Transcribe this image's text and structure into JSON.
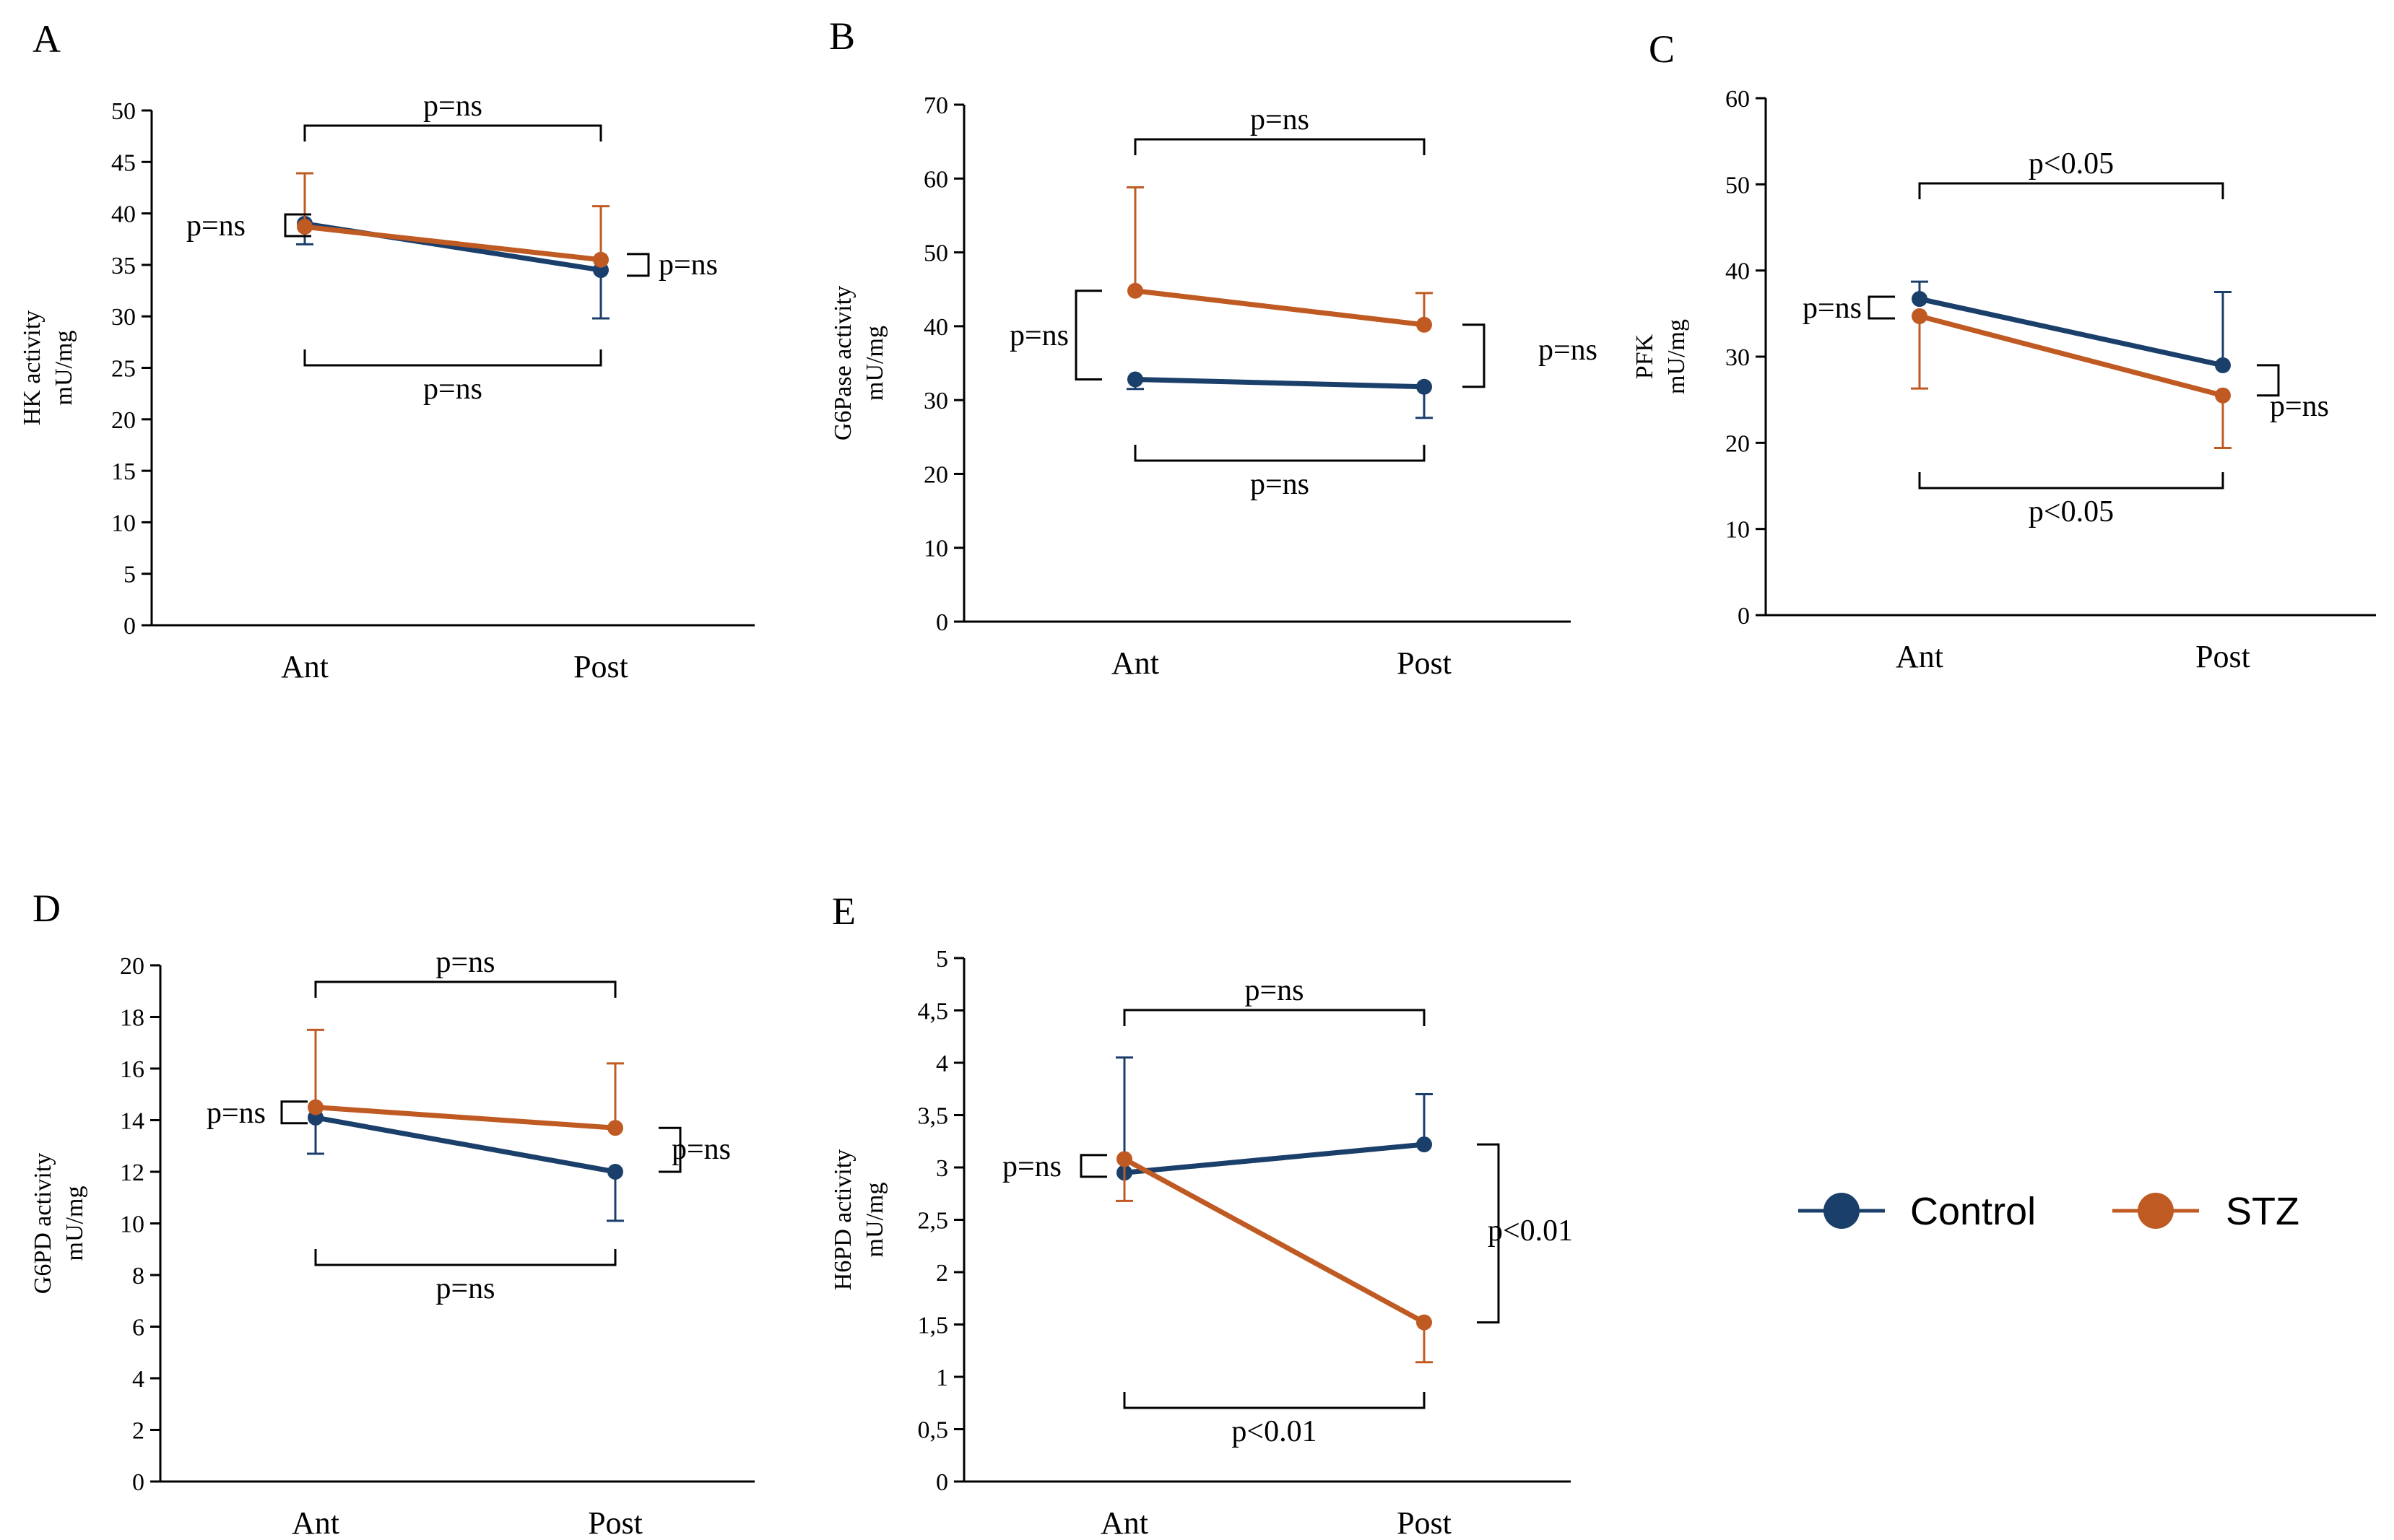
{
  "colors": {
    "control": "#1b3f6b",
    "stz": "#c05a23"
  },
  "legend": [
    {
      "key": "control",
      "label": "Control"
    },
    {
      "key": "stz",
      "label": "STZ"
    }
  ],
  "chart_data": [
    {
      "panel": "A",
      "type": "line",
      "categories": [
        "Ant",
        "Post"
      ],
      "ylabel_line1": "HK  activity",
      "ylabel_line2": "mU/mg",
      "ylim": [
        0,
        50
      ],
      "yticks": [
        "0",
        "5",
        "10",
        "15",
        "20",
        "25",
        "30",
        "35",
        "40",
        "45",
        "50"
      ],
      "series": [
        {
          "name": "Control",
          "key": "control",
          "values": [
            39,
            34.5
          ],
          "err_low": [
            2,
            4.7
          ],
          "err_high": [
            0,
            0
          ]
        },
        {
          "name": "STZ",
          "key": "stz",
          "values": [
            38.7,
            35.5
          ],
          "err_low": [
            0,
            0
          ],
          "err_high": [
            5.2,
            5.2
          ]
        }
      ],
      "annotations": {
        "top": "p=ns",
        "bottom": "p=ns",
        "left": "p=ns",
        "right": "p=ns"
      }
    },
    {
      "panel": "B",
      "type": "line",
      "categories": [
        "Ant",
        "Post"
      ],
      "ylabel_line1": "G6Pase  activity",
      "ylabel_line2": "mU/mg",
      "ylim": [
        0,
        70
      ],
      "yticks": [
        "0",
        "10",
        "20",
        "30",
        "40",
        "50",
        "60",
        "70"
      ],
      "series": [
        {
          "name": "Control",
          "key": "control",
          "values": [
            32.8,
            31.8
          ],
          "err_low": [
            1.3,
            4.2
          ],
          "err_high": [
            0,
            0
          ]
        },
        {
          "name": "STZ",
          "key": "stz",
          "values": [
            44.8,
            40.2
          ],
          "err_low": [
            0,
            0
          ],
          "err_high": [
            14,
            4.3
          ]
        }
      ],
      "annotations": {
        "top": "p=ns",
        "bottom": "p=ns",
        "left": "p=ns",
        "right": "p=ns"
      }
    },
    {
      "panel": "C",
      "type": "line",
      "categories": [
        "Ant",
        "Post"
      ],
      "ylabel_line1": "PFK",
      "ylabel_line2": "mU/mg",
      "ylim": [
        0,
        60
      ],
      "yticks": [
        "0",
        "10",
        "20",
        "30",
        "40",
        "50",
        "60"
      ],
      "series": [
        {
          "name": "Control",
          "key": "control",
          "values": [
            36.7,
            29
          ],
          "err_low": [
            0,
            0
          ],
          "err_high": [
            2,
            8.5
          ]
        },
        {
          "name": "STZ",
          "key": "stz",
          "values": [
            34.7,
            25.5
          ],
          "err_low": [
            8.4,
            6.1
          ],
          "err_high": [
            0,
            0
          ]
        }
      ],
      "annotations": {
        "top": "p<0.05",
        "bottom": "p<0.05",
        "left": "p=ns",
        "right": "p=ns"
      }
    },
    {
      "panel": "D",
      "type": "line",
      "categories": [
        "Ant",
        "Post"
      ],
      "ylabel_line1": "G6PD  activity",
      "ylabel_line2": "mU/mg",
      "ylim": [
        0,
        20
      ],
      "yticks": [
        "0",
        "2",
        "4",
        "6",
        "8",
        "10",
        "12",
        "14",
        "16",
        "18",
        "20"
      ],
      "series": [
        {
          "name": "Control",
          "key": "control",
          "values": [
            14.1,
            12
          ],
          "err_low": [
            1.4,
            1.9
          ],
          "err_high": [
            0,
            0
          ]
        },
        {
          "name": "STZ",
          "key": "stz",
          "values": [
            14.5,
            13.7
          ],
          "err_low": [
            0,
            0
          ],
          "err_high": [
            3,
            2.5
          ]
        }
      ],
      "annotations": {
        "top": "p=ns",
        "bottom": "p=ns",
        "left": "p=ns",
        "right": "p=ns"
      }
    },
    {
      "panel": "E",
      "type": "line",
      "categories": [
        "Ant",
        "Post"
      ],
      "ylabel_line1": "H6PD  activity",
      "ylabel_line2": "mU/mg",
      "ylim": [
        0,
        5
      ],
      "yticks": [
        "0",
        "0,5",
        "1",
        "1,5",
        "2",
        "2,5",
        "3",
        "3,5",
        "4",
        "4,5",
        "5"
      ],
      "series": [
        {
          "name": "Control",
          "key": "control",
          "values": [
            2.95,
            3.22
          ],
          "err_low": [
            0,
            0
          ],
          "err_high": [
            1.1,
            0.48
          ]
        },
        {
          "name": "STZ",
          "key": "stz",
          "values": [
            3.08,
            1.52
          ],
          "err_low": [
            0.4,
            0.38
          ],
          "err_high": [
            0,
            0
          ]
        }
      ],
      "annotations": {
        "top": "p=ns",
        "bottom": "p<0.01",
        "left": "p=ns",
        "right": "p<0.01"
      }
    }
  ]
}
